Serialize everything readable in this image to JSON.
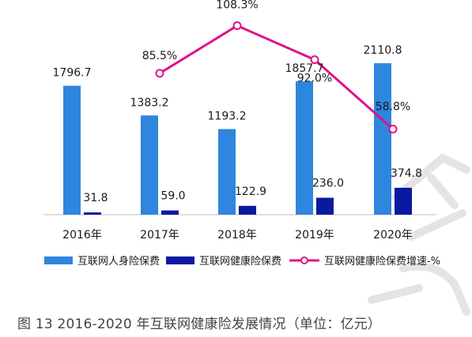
{
  "caption": "图 13 2016-2020 年互联网健康险发展情况（单位：亿元）",
  "colors": {
    "personal": "#2e86de",
    "health": "#0a1aa0",
    "growth": "#e0118a",
    "axis": "#bfbfbf",
    "label": "#1a1a1a"
  },
  "chart_data": {
    "type": "bar",
    "categories": [
      "2016年",
      "2017年",
      "2018年",
      "2019年",
      "2020年"
    ],
    "series": [
      {
        "name": "互联网人身险保费",
        "type": "bar",
        "values": [
          1796.7,
          1383.2,
          1193.2,
          1857.7,
          2110.8
        ],
        "labels": [
          "1796.7",
          "1383.2",
          "1193.2",
          "1857.7",
          "2110.8"
        ]
      },
      {
        "name": "互联网健康险保费",
        "type": "bar",
        "values": [
          31.8,
          59.0,
          122.9,
          236.0,
          374.8
        ],
        "labels": [
          "31.8",
          "59.0",
          "122.9",
          "236.0",
          "374.8"
        ]
      },
      {
        "name": "互联网健康险保费增速-%",
        "type": "line",
        "values": [
          null,
          85.5,
          108.3,
          92.0,
          58.8
        ],
        "labels": [
          null,
          "85.5%",
          "108.3%",
          "92.0%",
          "58.8%"
        ]
      }
    ],
    "legend_position": "bottom",
    "grid": false
  }
}
